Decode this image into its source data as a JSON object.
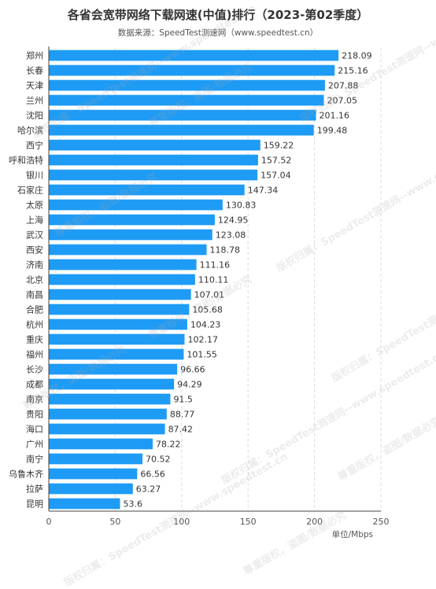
{
  "title": "各省会宽带网络下载网速(中值)排行（2023-第02季度）",
  "subtitle": "数据来源：SpeedTest测速网（www.speedtest.cn）",
  "watermark": {
    "line1": "版权归属：SpeedTest测速网--www.speedtest.cn",
    "line2": "尊重版权，盗图/数据必究"
  },
  "colors": {
    "bar": "#1e9bf5",
    "grid": "#dddddd",
    "axis": "#444444",
    "text": "#333333"
  },
  "chart_data": {
    "type": "bar",
    "orientation": "horizontal",
    "categories": [
      "郑州",
      "长春",
      "天津",
      "兰州",
      "沈阳",
      "哈尔滨",
      "西宁",
      "呼和浩特",
      "银川",
      "石家庄",
      "太原",
      "上海",
      "武汉",
      "西安",
      "济南",
      "北京",
      "南昌",
      "合肥",
      "杭州",
      "重庆",
      "福州",
      "长沙",
      "成都",
      "南京",
      "贵阳",
      "海口",
      "广州",
      "南宁",
      "乌鲁木齐",
      "拉萨",
      "昆明"
    ],
    "values": [
      218.09,
      215.16,
      207.88,
      207.05,
      201.16,
      199.48,
      159.22,
      157.52,
      157.04,
      147.34,
      130.83,
      124.95,
      123.08,
      118.78,
      111.16,
      110.11,
      107.01,
      105.68,
      104.23,
      102.17,
      101.55,
      96.66,
      94.29,
      91.5,
      88.77,
      87.42,
      78.22,
      70.52,
      66.56,
      63.27,
      53.6
    ],
    "value_labels": [
      "218.09",
      "215.16",
      "207.88",
      "207.05",
      "201.16",
      "199.48",
      "159.22",
      "157.52",
      "157.04",
      "147.34",
      "130.83",
      "124.95",
      "123.08",
      "118.78",
      "111.16",
      "110.11",
      "107.01",
      "105.68",
      "104.23",
      "102.17",
      "101.55",
      "96.66",
      "94.29",
      "91.5",
      "88.77",
      "87.42",
      "78.22",
      "70.52",
      "66.56",
      "63.27",
      "53.6"
    ],
    "xlim": [
      0,
      250
    ],
    "xticks": [
      "0",
      "50",
      "100",
      "150",
      "200",
      "250"
    ],
    "xunit": "单位/Mbps",
    "grid": "vertical dashed"
  }
}
